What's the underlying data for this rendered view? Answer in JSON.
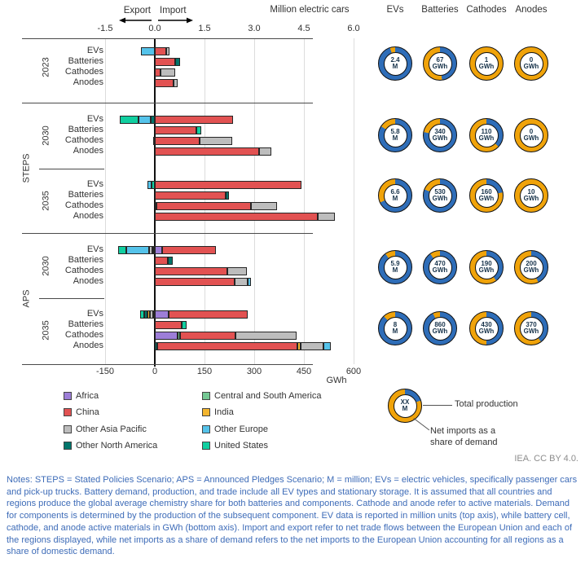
{
  "header": {
    "export_label": "Export",
    "import_label": "Import",
    "top_axis_title": "Million electric cars",
    "donut_columns": [
      "EVs",
      "Batteries",
      "Cathodes",
      "Anodes"
    ]
  },
  "axes": {
    "top_ticks": [
      "-1.5",
      "0.0",
      "1.5",
      "3.0",
      "4.5",
      "6.0"
    ],
    "bottom_ticks": [
      "-150",
      "0",
      "150",
      "300",
      "450",
      "600"
    ],
    "bottom_unit": "GWh"
  },
  "colors": {
    "regions": {
      "Africa": "#9d7ed8",
      "China": "#e25252",
      "Other Asia Pacific": "#bdbdbd",
      "Other North America": "#00756b",
      "Central and South America": "#74c893",
      "India": "#f3b52f",
      "Other Europe": "#55c3ea",
      "United States": "#10cfa0"
    },
    "donut_production": "#2e6db8",
    "donut_net_imports": "#f0a30a",
    "notes_text": "#3e6cb8",
    "grid": "#dcdcdc"
  },
  "legend": {
    "items": [
      {
        "label": "Africa"
      },
      {
        "label": "China"
      },
      {
        "label": "Other Asia Pacific"
      },
      {
        "label": "Other North America"
      },
      {
        "label": "Central and South America"
      },
      {
        "label": "India"
      },
      {
        "label": "Other Europe"
      },
      {
        "label": "United States"
      }
    ]
  },
  "production_legend": {
    "center_value": "XX",
    "center_unit": "M",
    "net_import_share": 0.8,
    "total_label": "Total production",
    "share_label_line1": "Net imports as a",
    "share_label_line2": "share of demand"
  },
  "attribution": "IEA. CC BY 4.0.",
  "notes": "Notes: STEPS = Stated Policies Scenario; APS = Announced Pledges Scenario; M = million; EVs = electric vehicles, specifically passenger cars and pick-up trucks. Battery demand, production, and trade include all EV types and stationary storage. It is assumed that all countries and regions produce the global average chemistry share for both batteries and components. Cathode and anode refer to active materials. Demand for components is determined by the production of the subsequent component. EV data is reported in million units (top axis), while battery cell, cathode, and anode active materials in GWh (bottom axis). Import and export refer to net trade flows between the European Union and each of the regions displayed, while net imports as a share of demand refers to the net imports to the European Union accounting for all regions as a share of domestic demand.",
  "chart_data": {
    "type": "bar",
    "orientation": "horizontal-stacked",
    "title": "EV, battery, cathode and anode trade and production, European Union",
    "top_axis": {
      "label": "Million electric cars",
      "min": -1.5,
      "max": 6.0,
      "ticks": [
        -1.5,
        0.0,
        1.5,
        3.0,
        4.5,
        6.0
      ]
    },
    "bottom_axis": {
      "label": "GWh",
      "min": -150,
      "max": 600,
      "ticks": [
        -150,
        0,
        150,
        300,
        450,
        600
      ]
    },
    "grid": true,
    "unit_note": "EVs rows in million cars (top axis); Batteries/Cathodes/Anodes rows in GWh (bottom axis); negative = export, positive = import",
    "scenario_spans": [
      {
        "label": "STEPS",
        "from_group": 1,
        "to_group": 2
      },
      {
        "label": "APS",
        "from_group": 3,
        "to_group": 4
      }
    ],
    "groups": [
      {
        "year": "2023",
        "scenario": "",
        "rows": [
          {
            "label": "EVs",
            "unit": "M",
            "segments": [
              {
                "region": "Other Europe",
                "value": -0.42
              },
              {
                "region": "China",
                "value": 0.35
              },
              {
                "region": "Other Asia Pacific",
                "value": 0.1
              }
            ]
          },
          {
            "label": "Batteries",
            "unit": "GWh",
            "segments": [
              {
                "region": "China",
                "value": 62
              },
              {
                "region": "Other North America",
                "value": 15
              }
            ]
          },
          {
            "label": "Cathodes",
            "unit": "GWh",
            "segments": [
              {
                "region": "China",
                "value": 16
              },
              {
                "region": "Other Asia Pacific",
                "value": 46
              }
            ]
          },
          {
            "label": "Anodes",
            "unit": "GWh",
            "segments": [
              {
                "region": "China",
                "value": 56
              },
              {
                "region": "Other Asia Pacific",
                "value": 13
              }
            ]
          }
        ],
        "donuts": [
          {
            "column": "EVs",
            "value": "2.4",
            "unit": "M",
            "net_import_share": 0.05
          },
          {
            "column": "Batteries",
            "value": "67",
            "unit": "GWh",
            "net_import_share": 0.52
          },
          {
            "column": "Cathodes",
            "value": "1",
            "unit": "GWh",
            "net_import_share": 1
          },
          {
            "column": "Anodes",
            "value": "0",
            "unit": "GWh",
            "net_import_share": 1
          }
        ]
      },
      {
        "year": "2030",
        "scenario": "STEPS",
        "rows": [
          {
            "label": "EVs",
            "unit": "M",
            "segments": [
              {
                "region": "United States",
                "value": -0.57
              },
              {
                "region": "Other Europe",
                "value": -0.37
              },
              {
                "region": "Other North America",
                "value": -0.12
              },
              {
                "region": "China",
                "value": 2.35
              }
            ]
          },
          {
            "label": "Batteries",
            "unit": "GWh",
            "segments": [
              {
                "region": "China",
                "value": 125
              },
              {
                "region": "United States",
                "value": 14
              }
            ]
          },
          {
            "label": "Cathodes",
            "unit": "GWh",
            "segments": [
              {
                "region": "Other North America",
                "value": -5
              },
              {
                "region": "China",
                "value": 135
              },
              {
                "region": "Other Asia Pacific",
                "value": 99
              }
            ]
          },
          {
            "label": "Anodes",
            "unit": "GWh",
            "segments": [
              {
                "region": "China",
                "value": 315
              },
              {
                "region": "Other Asia Pacific",
                "value": 37
              }
            ]
          }
        ],
        "donuts": [
          {
            "column": "EVs",
            "value": "5.8",
            "unit": "M",
            "net_import_share": 0.16
          },
          {
            "column": "Batteries",
            "value": "340",
            "unit": "GWh",
            "net_import_share": 0.22
          },
          {
            "column": "Cathodes",
            "value": "110",
            "unit": "GWh",
            "net_import_share": 0.63
          },
          {
            "column": "Anodes",
            "value": "0",
            "unit": "GWh",
            "net_import_share": 1
          }
        ]
      },
      {
        "year": "2035",
        "scenario": "STEPS",
        "rows": [
          {
            "label": "EVs",
            "unit": "M",
            "segments": [
              {
                "region": "Other Europe",
                "value": -0.12
              },
              {
                "region": "United States",
                "value": -0.11
              },
              {
                "region": "China",
                "value": 4.42
              }
            ]
          },
          {
            "label": "Batteries",
            "unit": "GWh",
            "segments": [
              {
                "region": "China",
                "value": 213
              },
              {
                "region": "Other North America",
                "value": 12
              }
            ]
          },
          {
            "label": "Cathodes",
            "unit": "GWh",
            "segments": [
              {
                "region": "Other North America",
                "value": 5
              },
              {
                "region": "China",
                "value": 285
              },
              {
                "region": "Other Asia Pacific",
                "value": 78
              }
            ]
          },
          {
            "label": "Anodes",
            "unit": "GWh",
            "segments": [
              {
                "region": "China",
                "value": 492
              },
              {
                "region": "Other Asia Pacific",
                "value": 52
              }
            ]
          }
        ],
        "donuts": [
          {
            "column": "EVs",
            "value": "6.6",
            "unit": "M",
            "net_import_share": 0.32
          },
          {
            "column": "Batteries",
            "value": "530",
            "unit": "GWh",
            "net_import_share": 0.19
          },
          {
            "column": "Cathodes",
            "value": "160",
            "unit": "GWh",
            "net_import_share": 0.78
          },
          {
            "column": "Anodes",
            "value": "10",
            "unit": "GWh",
            "net_import_share": 1
          }
        ]
      },
      {
        "year": "2030",
        "scenario": "APS",
        "rows": [
          {
            "label": "EVs",
            "unit": "M",
            "segments": [
              {
                "region": "United States",
                "value": -0.26
              },
              {
                "region": "Other Europe",
                "value": -0.67
              },
              {
                "region": "Other Asia Pacific",
                "value": -0.11
              },
              {
                "region": "India",
                "value": -0.04
              },
              {
                "region": "Other North America",
                "value": -0.03
              },
              {
                "region": "Africa",
                "value": 0.22
              },
              {
                "region": "China",
                "value": 1.62
              }
            ]
          },
          {
            "label": "Batteries",
            "unit": "GWh",
            "segments": [
              {
                "region": "China",
                "value": 40
              },
              {
                "region": "Other North America",
                "value": 14
              }
            ]
          },
          {
            "label": "Cathodes",
            "unit": "GWh",
            "segments": [
              {
                "region": "China",
                "value": 220
              },
              {
                "region": "Other Asia Pacific",
                "value": 58
              }
            ]
          },
          {
            "label": "Anodes",
            "unit": "GWh",
            "segments": [
              {
                "region": "China",
                "value": 242
              },
              {
                "region": "Other Asia Pacific",
                "value": 38
              },
              {
                "region": "Other Europe",
                "value": 10
              }
            ]
          }
        ],
        "donuts": [
          {
            "column": "EVs",
            "value": "5.9",
            "unit": "M",
            "net_import_share": 0.1
          },
          {
            "column": "Batteries",
            "value": "470",
            "unit": "GWh",
            "net_import_share": 0.1
          },
          {
            "column": "Cathodes",
            "value": "190",
            "unit": "GWh",
            "net_import_share": 0.6
          },
          {
            "column": "Anodes",
            "value": "200",
            "unit": "GWh",
            "net_import_share": 0.57
          }
        ]
      },
      {
        "year": "2035",
        "scenario": "APS",
        "rows": [
          {
            "label": "EVs",
            "unit": "M",
            "segments": [
              {
                "region": "United States",
                "value": -0.12
              },
              {
                "region": "Other North America",
                "value": -0.1
              },
              {
                "region": "India",
                "value": -0.08
              },
              {
                "region": "Other Asia Pacific",
                "value": -0.09
              },
              {
                "region": "Central and South America",
                "value": -0.06
              },
              {
                "region": "Africa",
                "value": 0.41
              },
              {
                "region": "China",
                "value": 2.4
              }
            ]
          },
          {
            "label": "Batteries",
            "unit": "GWh",
            "segments": [
              {
                "region": "China",
                "value": 80
              },
              {
                "region": "United States",
                "value": 15
              }
            ]
          },
          {
            "label": "Cathodes",
            "unit": "GWh",
            "segments": [
              {
                "region": "Africa",
                "value": 70
              },
              {
                "region": "Central and South America",
                "value": 6
              },
              {
                "region": "China",
                "value": 167
              },
              {
                "region": "Other Asia Pacific",
                "value": 186
              }
            ]
          },
          {
            "label": "Anodes",
            "unit": "GWh",
            "segments": [
              {
                "region": "Other North America",
                "value": 8
              },
              {
                "region": "China",
                "value": 422
              },
              {
                "region": "India",
                "value": 10
              },
              {
                "region": "Other Asia Pacific",
                "value": 68
              },
              {
                "region": "Other Europe",
                "value": 22
              }
            ]
          }
        ],
        "donuts": [
          {
            "column": "EVs",
            "value": "8",
            "unit": "M",
            "net_import_share": 0.12
          },
          {
            "column": "Batteries",
            "value": "860",
            "unit": "GWh",
            "net_import_share": 0.07
          },
          {
            "column": "Cathodes",
            "value": "430",
            "unit": "GWh",
            "net_import_share": 0.5
          },
          {
            "column": "Anodes",
            "value": "370",
            "unit": "GWh",
            "net_import_share": 0.6
          }
        ]
      }
    ]
  }
}
